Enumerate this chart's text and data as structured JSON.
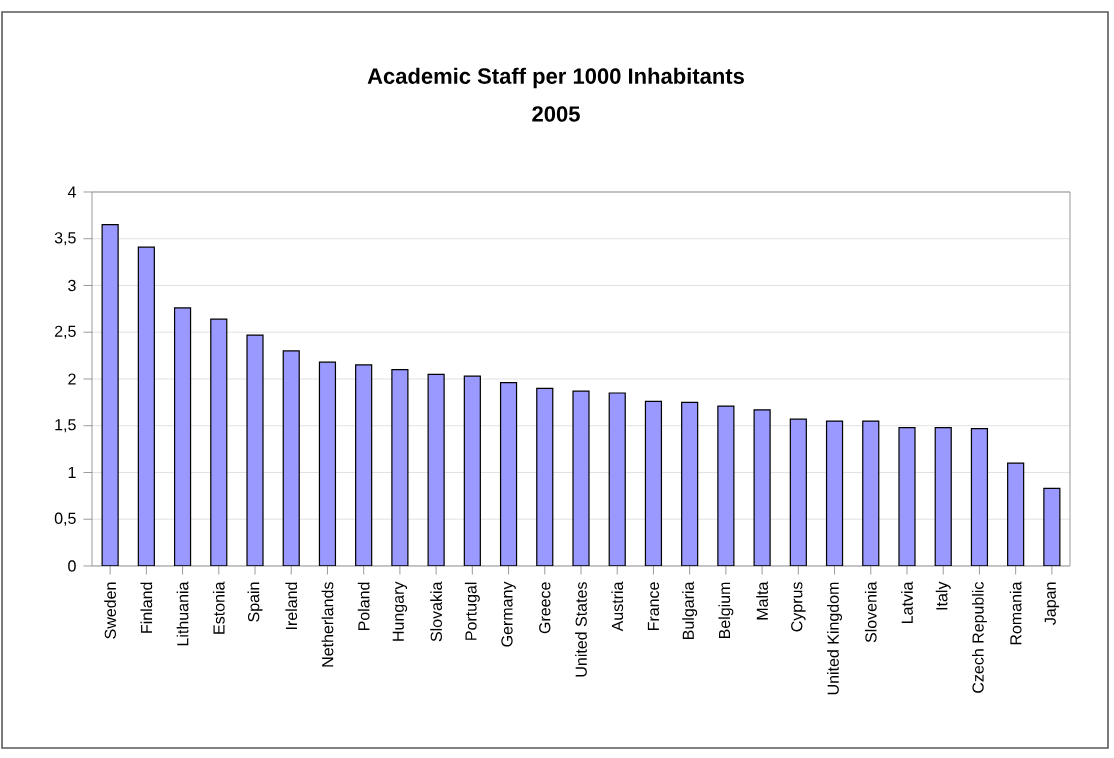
{
  "chart_data": {
    "type": "bar",
    "title": "Academic Staff per 1000 Inhabitants",
    "subtitle": "2005",
    "categories": [
      "Sweden",
      "Finland",
      "Lithuania",
      "Estonia",
      "Spain",
      "Ireland",
      "Netherlands",
      "Poland",
      "Hungary",
      "Slovakia",
      "Portugal",
      "Germany",
      "Greece",
      "United States",
      "Austria",
      "France",
      "Bulgaria",
      "Belgium",
      "Malta",
      "Cyprus",
      "United Kingdom",
      "Slovenia",
      "Latvia",
      "Italy",
      "Czech Republic",
      "Romania",
      "Japan"
    ],
    "values": [
      3.65,
      3.41,
      2.76,
      2.64,
      2.47,
      2.3,
      2.18,
      2.15,
      2.1,
      2.05,
      2.03,
      1.96,
      1.9,
      1.87,
      1.85,
      1.76,
      1.75,
      1.71,
      1.67,
      1.57,
      1.55,
      1.55,
      1.48,
      1.48,
      1.47,
      1.1,
      0.83
    ],
    "color": "#9999ff",
    "ylim": [
      0,
      4
    ],
    "yticks": [
      {
        "value": 0,
        "label": "0"
      },
      {
        "value": 0.5,
        "label": "0,5"
      },
      {
        "value": 1,
        "label": "1"
      },
      {
        "value": 1.5,
        "label": "1,5"
      },
      {
        "value": 2,
        "label": "2"
      },
      {
        "value": 2.5,
        "label": "2,5"
      },
      {
        "value": 3,
        "label": "3"
      },
      {
        "value": 3.5,
        "label": "3,5"
      },
      {
        "value": 4,
        "label": "4"
      }
    ],
    "grid": "y"
  }
}
